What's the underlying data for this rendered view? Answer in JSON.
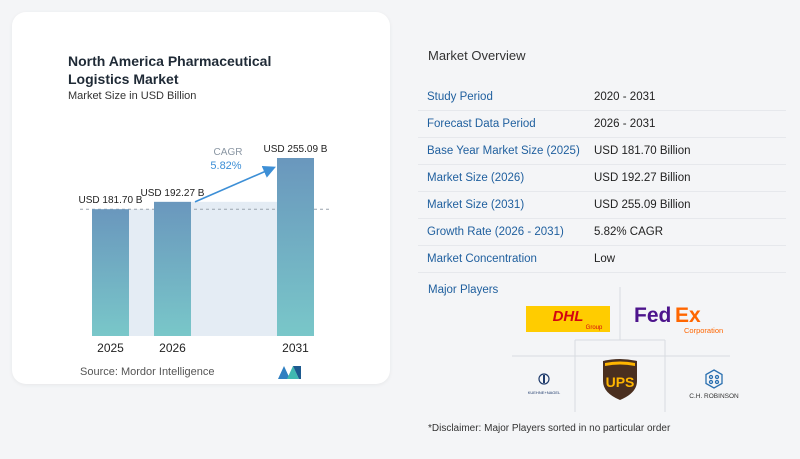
{
  "chart_data": {
    "type": "bar",
    "title": "North America Pharmaceutical Logistics Market",
    "subtitle": "Market Size in USD Billion",
    "categories": [
      "2025",
      "2026",
      "2031"
    ],
    "values": [
      181.7,
      192.27,
      255.09
    ],
    "value_labels": [
      "USD 181.70 B",
      "USD 192.27 B",
      "USD 255.09 B"
    ],
    "ylim": [
      0,
      255.09
    ],
    "annotation": {
      "label": "CAGR",
      "value": "5.82%"
    },
    "colors": {
      "bar_top": "#6a97bd",
      "bar_bottom": "#79c7c9",
      "band": "#e4ecf4",
      "arrow": "#3d8fd6"
    },
    "legend": "none",
    "grid": false
  },
  "source": {
    "label": "Source:",
    "name": "Mordor Intelligence"
  },
  "overview": {
    "title": "Market Overview",
    "rows": [
      {
        "label": "Study Period",
        "value": "2020 - 2031"
      },
      {
        "label": "Forecast Data Period",
        "value": "2026 - 2031"
      },
      {
        "label": "Base Year Market Size (2025)",
        "value": "USD 181.70 Billion"
      },
      {
        "label": "Market Size (2026)",
        "value": "USD 192.27 Billion"
      },
      {
        "label": "Market Size (2031)",
        "value": "USD 255.09 Billion"
      },
      {
        "label": "Growth Rate (2026 - 2031)",
        "value": "5.82% CAGR"
      },
      {
        "label": "Market Concentration",
        "value": "Low"
      }
    ]
  },
  "players": {
    "title": "Major Players",
    "logos": [
      {
        "name": "DHL Group",
        "icon": "dhl-logo"
      },
      {
        "name": "FedEx Corporation",
        "icon": "fedex-logo"
      },
      {
        "name": "Kuehne + Nagel",
        "icon": "kuehne-nagel-logo"
      },
      {
        "name": "UPS",
        "icon": "ups-logo"
      },
      {
        "name": "C.H. Robinson",
        "icon": "ch-robinson-logo"
      }
    ]
  },
  "disclaimer": "*Disclaimer: Major Players sorted in no particular order"
}
